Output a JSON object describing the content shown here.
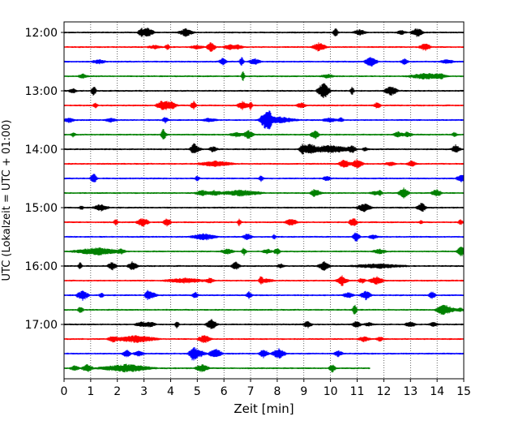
{
  "chart_data": {
    "type": "line",
    "title": "",
    "xlabel": "Zeit  [min]",
    "ylabel": "UTC (Lokalzeit = UTC + 01:00)",
    "xlim": [
      0,
      15
    ],
    "x_ticks": [
      "0",
      "1",
      "2",
      "3",
      "4",
      "5",
      "6",
      "7",
      "8",
      "9",
      "10",
      "11",
      "12",
      "13",
      "14",
      "15"
    ],
    "y_ticks": [
      "12:00",
      "13:00",
      "14:00",
      "15:00",
      "16:00",
      "17:00"
    ],
    "grid": "vertical dotted lines at each minute",
    "legend": "none",
    "trace_colors": [
      "#000000",
      "#ff0000",
      "#0000ff",
      "#008000"
    ],
    "trace_interval_minutes": 15,
    "series": [
      {
        "start": "12:00",
        "color": "#000000",
        "x_end": 15
      },
      {
        "start": "12:15",
        "color": "#ff0000",
        "x_end": 15
      },
      {
        "start": "12:30",
        "color": "#0000ff",
        "x_end": 15
      },
      {
        "start": "12:45",
        "color": "#008000",
        "x_end": 15
      },
      {
        "start": "13:00",
        "color": "#000000",
        "x_end": 15
      },
      {
        "start": "13:15",
        "color": "#ff0000",
        "x_end": 15
      },
      {
        "start": "13:30",
        "color": "#0000ff",
        "x_end": 15
      },
      {
        "start": "13:45",
        "color": "#008000",
        "x_end": 15
      },
      {
        "start": "14:00",
        "color": "#000000",
        "x_end": 15
      },
      {
        "start": "14:15",
        "color": "#ff0000",
        "x_end": 15
      },
      {
        "start": "14:30",
        "color": "#0000ff",
        "x_end": 15
      },
      {
        "start": "14:45",
        "color": "#008000",
        "x_end": 15
      },
      {
        "start": "15:00",
        "color": "#000000",
        "x_end": 15
      },
      {
        "start": "15:15",
        "color": "#ff0000",
        "x_end": 15
      },
      {
        "start": "15:30",
        "color": "#0000ff",
        "x_end": 15
      },
      {
        "start": "15:45",
        "color": "#008000",
        "x_end": 15
      },
      {
        "start": "16:00",
        "color": "#000000",
        "x_end": 15
      },
      {
        "start": "16:15",
        "color": "#ff0000",
        "x_end": 15
      },
      {
        "start": "16:30",
        "color": "#0000ff",
        "x_end": 15
      },
      {
        "start": "16:45",
        "color": "#008000",
        "x_end": 15
      },
      {
        "start": "17:00",
        "color": "#000000",
        "x_end": 15
      },
      {
        "start": "17:15",
        "color": "#ff0000",
        "x_end": 15
      },
      {
        "start": "17:30",
        "color": "#0000ff",
        "x_end": 15
      },
      {
        "start": "17:45",
        "color": "#008000",
        "x_end": 11.5
      }
    ]
  }
}
